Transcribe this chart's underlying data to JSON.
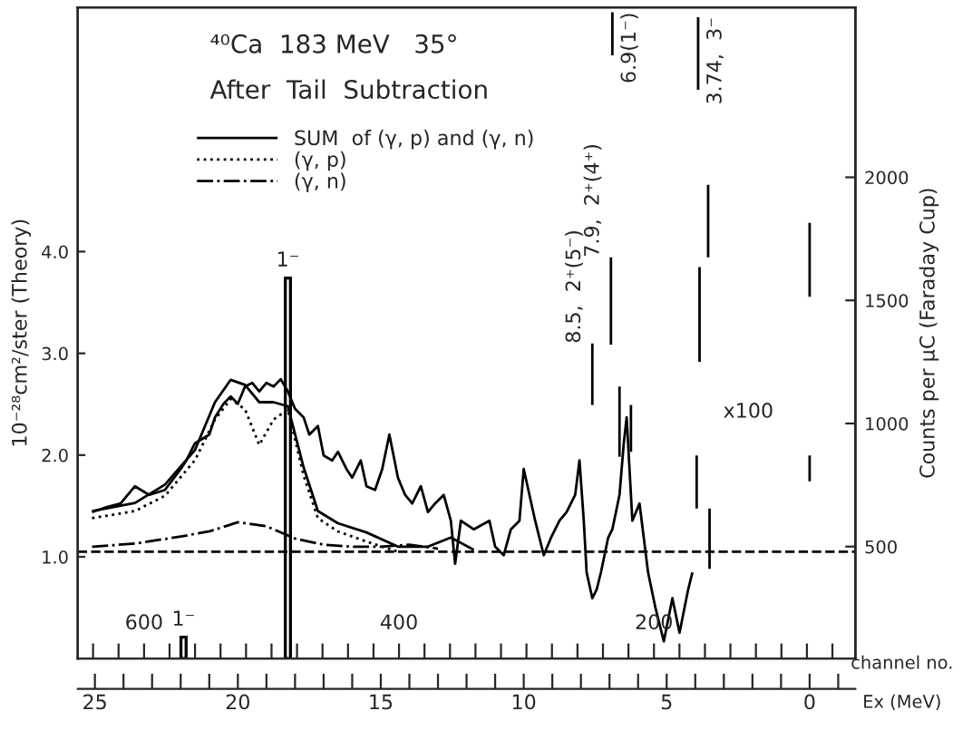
{
  "chart_data": {
    "type": "line",
    "title": "⁴⁰Ca  183 MeV   35°",
    "subtitle": "After  Tail  Subtraction",
    "xlabel": "Ex (MeV)",
    "x2label": "channel no.",
    "ylabel": "10⁻²⁸cm²/ster (Theory)",
    "y2label": "Counts per μC (Faraday Cup)",
    "xlim": [
      25.6,
      -1.6
    ],
    "xticks": [
      {
        "value": 25,
        "label": "25"
      },
      {
        "value": 24,
        "label": null
      },
      {
        "value": 23,
        "label": null
      },
      {
        "value": 22,
        "label": null
      },
      {
        "value": 21,
        "label": null
      },
      {
        "value": 20,
        "label": "20"
      },
      {
        "value": 19,
        "label": null
      },
      {
        "value": 18,
        "label": null
      },
      {
        "value": 17,
        "label": null
      },
      {
        "value": 16,
        "label": null
      },
      {
        "value": 15,
        "label": "15"
      },
      {
        "value": 14,
        "label": null
      },
      {
        "value": 13,
        "label": null
      },
      {
        "value": 12,
        "label": null
      },
      {
        "value": 11,
        "label": null
      },
      {
        "value": 10,
        "label": "10"
      },
      {
        "value": 9,
        "label": null
      },
      {
        "value": 8,
        "label": null
      },
      {
        "value": 7,
        "label": null
      },
      {
        "value": 6,
        "label": null
      },
      {
        "value": 5,
        "label": "5"
      },
      {
        "value": 4,
        "label": null
      },
      {
        "value": 3,
        "label": null
      },
      {
        "value": 2,
        "label": null
      },
      {
        "value": 1,
        "label": null
      },
      {
        "value": 0,
        "label": "0"
      },
      {
        "value": -1,
        "label": null
      }
    ],
    "x2lim": [
      652,
      42
    ],
    "x2ticks": [
      {
        "value": 640,
        "label": null
      },
      {
        "value": 620,
        "label": null
      },
      {
        "value": 600,
        "label": "600"
      },
      {
        "value": 580,
        "label": null
      },
      {
        "value": 560,
        "label": null
      },
      {
        "value": 540,
        "label": null
      },
      {
        "value": 520,
        "label": null
      },
      {
        "value": 500,
        "label": null
      },
      {
        "value": 480,
        "label": null
      },
      {
        "value": 460,
        "label": null
      },
      {
        "value": 440,
        "label": null
      },
      {
        "value": 420,
        "label": null
      },
      {
        "value": 400,
        "label": "400"
      },
      {
        "value": 380,
        "label": null
      },
      {
        "value": 360,
        "label": null
      },
      {
        "value": 340,
        "label": null
      },
      {
        "value": 320,
        "label": null
      },
      {
        "value": 300,
        "label": null
      },
      {
        "value": 280,
        "label": null
      },
      {
        "value": 260,
        "label": null
      },
      {
        "value": 240,
        "label": null
      },
      {
        "value": 220,
        "label": null
      },
      {
        "value": 200,
        "label": "200"
      },
      {
        "value": 180,
        "label": null
      },
      {
        "value": 160,
        "label": null
      },
      {
        "value": 140,
        "label": null
      },
      {
        "value": 120,
        "label": null
      },
      {
        "value": 100,
        "label": null
      },
      {
        "value": 80,
        "label": null
      },
      {
        "value": 60,
        "label": null
      }
    ],
    "ylim": [
      0,
      6.4
    ],
    "yticks": [
      {
        "value": 1,
        "label": "1.0"
      },
      {
        "value": 2,
        "label": "2.0"
      },
      {
        "value": 3,
        "label": "3.0"
      },
      {
        "value": 4,
        "label": "4.0"
      }
    ],
    "y2lim": [
      45,
      2690
    ],
    "y2ticks": [
      500,
      1000,
      1500,
      2000
    ],
    "grid": false,
    "legend": "top left",
    "marker": "none",
    "ref_lines": [
      {
        "axis": "y",
        "value": 1.05,
        "line_style": "dashed",
        "color": "#000000"
      }
    ],
    "annotations": [
      "x100"
    ],
    "series": [
      {
        "name": "SUM  of (γ, p) and (γ, n)",
        "line_style": "solid",
        "color": "#000000",
        "x": [
          25.1,
          23.6,
          22.55,
          21.5,
          20.8,
          20.25,
          19.75,
          19.25,
          18.75,
          18.25,
          17.7,
          17.2,
          16.5,
          15.5,
          14.4,
          13.35,
          12.55,
          11.75
        ],
        "values": [
          1.45,
          1.53,
          1.71,
          2.05,
          2.52,
          2.74,
          2.69,
          2.52,
          2.52,
          2.48,
          1.88,
          1.45,
          1.33,
          1.24,
          1.1,
          1.1,
          1.19,
          1.07
        ]
      },
      {
        "name": "(γ, p)",
        "line_style": "dotted",
        "color": "#000000",
        "x": [
          25.1,
          23.6,
          22.55,
          21.5,
          20.8,
          20.25,
          19.75,
          19.25,
          18.75,
          18.25,
          17.7,
          17.2,
          16.5,
          15.5,
          14.4
        ],
        "values": [
          1.38,
          1.45,
          1.6,
          1.95,
          2.35,
          2.55,
          2.45,
          2.1,
          2.35,
          2.45,
          1.8,
          1.38,
          1.25,
          1.15,
          1.05
        ]
      },
      {
        "name": "(γ, n)",
        "line_style": "dashdot",
        "color": "#000000",
        "x": [
          25.1,
          23.6,
          22.0,
          21.0,
          20.0,
          19.0,
          18.0,
          17.0,
          16.0,
          15.0,
          14.0,
          13.0
        ],
        "values": [
          1.1,
          1.13,
          1.2,
          1.25,
          1.34,
          1.3,
          1.18,
          1.12,
          1.1,
          1.1,
          1.12,
          1.08
        ]
      },
      {
        "name": "1⁻",
        "type": "bar",
        "color": "#000000",
        "x": [
          21.9
        ],
        "values": [
          0.21
        ]
      },
      {
        "name": "1⁻",
        "type": "bar",
        "color": "#000000",
        "x": [
          18.25
        ],
        "values": [
          3.74
        ]
      },
      {
        "axis": "y2",
        "line_style": "solid",
        "color": "#000000",
        "x": [
          25.1,
          24.6,
          24.1,
          23.6,
          23.1,
          22.55,
          22.0,
          21.8,
          21.5,
          21.0,
          20.8,
          20.5,
          20.25,
          20.0,
          19.75,
          19.5,
          19.25,
          19.0,
          18.75,
          18.5,
          18.25,
          18.0,
          17.7,
          17.5,
          17.2,
          17.0,
          16.7,
          16.5,
          16.2,
          16.0,
          15.7,
          15.5,
          15.2,
          14.95,
          14.7,
          14.4,
          14.15,
          13.9,
          13.6,
          13.35,
          13.1,
          12.8,
          12.55,
          12.4,
          12.2,
          11.75,
          11.2,
          11.0,
          10.7,
          10.45,
          10.15,
          10.0,
          9.6,
          9.3,
          9.05,
          8.75,
          8.5,
          8.2,
          8.05,
          7.9,
          7.8,
          7.6,
          7.45,
          7.3,
          7.05,
          6.9,
          6.65,
          6.5,
          6.4,
          6.2,
          5.95,
          5.65,
          5.4,
          5.1,
          4.8,
          4.55,
          4.25,
          4.1
        ],
        "values": [
          640,
          660,
          675,
          745,
          710,
          730,
          815,
          850,
          920,
          955,
          1025,
          1080,
          1110,
          1080,
          1150,
          1165,
          1130,
          1165,
          1150,
          1180,
          1130,
          1060,
          1025,
          955,
          990,
          870,
          850,
          885,
          815,
          780,
          850,
          745,
          730,
          815,
          955,
          780,
          710,
          675,
          745,
          640,
          675,
          710,
          605,
          430,
          605,
          570,
          605,
          500,
          465,
          570,
          605,
          815,
          605,
          465,
          535,
          605,
          640,
          710,
          850,
          605,
          395,
          290,
          325,
          395,
          535,
          570,
          710,
          920,
          1025,
          605,
          675,
          395,
          255,
          115,
          290,
          150,
          325,
          395
        ]
      },
      {
        "name": "6.9(1⁻)",
        "axis": "y2",
        "color": "#000000",
        "x": [
          6.9,
          6.9
        ],
        "values": [
          2670,
          2495
        ]
      },
      {
        "name": "3.74,  3⁻",
        "axis": "y2",
        "color": "#000000",
        "x": [
          3.9,
          3.9
        ],
        "values": [
          2650,
          2355
        ]
      },
      {
        "axis": "y2",
        "color": "#000000",
        "x": [
          3.55,
          3.55
        ],
        "values": [
          1970,
          1675
        ]
      },
      {
        "axis": "y2",
        "color": "#000000",
        "x": [
          3.85,
          3.85
        ],
        "values": [
          1635,
          1250
        ]
      },
      {
        "name": "7.9,  2⁺(4⁺)",
        "axis": "y2",
        "color": "#000000",
        "x": [
          6.95,
          6.95
        ],
        "values": [
          1675,
          1320
        ]
      },
      {
        "axis": "y2",
        "color": "#000000",
        "x": [
          6.65,
          6.65
        ],
        "values": [
          1150,
          865
        ]
      },
      {
        "name": "8.5,  2⁺(5⁻)",
        "axis": "y2",
        "color": "#000000",
        "x": [
          7.6,
          7.6
        ],
        "values": [
          1325,
          1075
        ]
      },
      {
        "axis": "y2",
        "color": "#000000",
        "x": [
          6.25,
          6.25
        ],
        "values": [
          1075,
          885
        ]
      },
      {
        "axis": "y2",
        "color": "#000000",
        "x": [
          0,
          0
        ],
        "values": [
          1815,
          1515
        ]
      },
      {
        "axis": "y2",
        "color": "#000000",
        "x": [
          3.95,
          3.95
        ],
        "values": [
          870,
          655
        ]
      },
      {
        "axis": "y2",
        "color": "#000000",
        "x": [
          3.5,
          3.5
        ],
        "values": [
          655,
          410
        ]
      },
      {
        "axis": "y2",
        "color": "#000000",
        "x": [
          0,
          0
        ],
        "values": [
          870,
          765
        ]
      }
    ]
  }
}
